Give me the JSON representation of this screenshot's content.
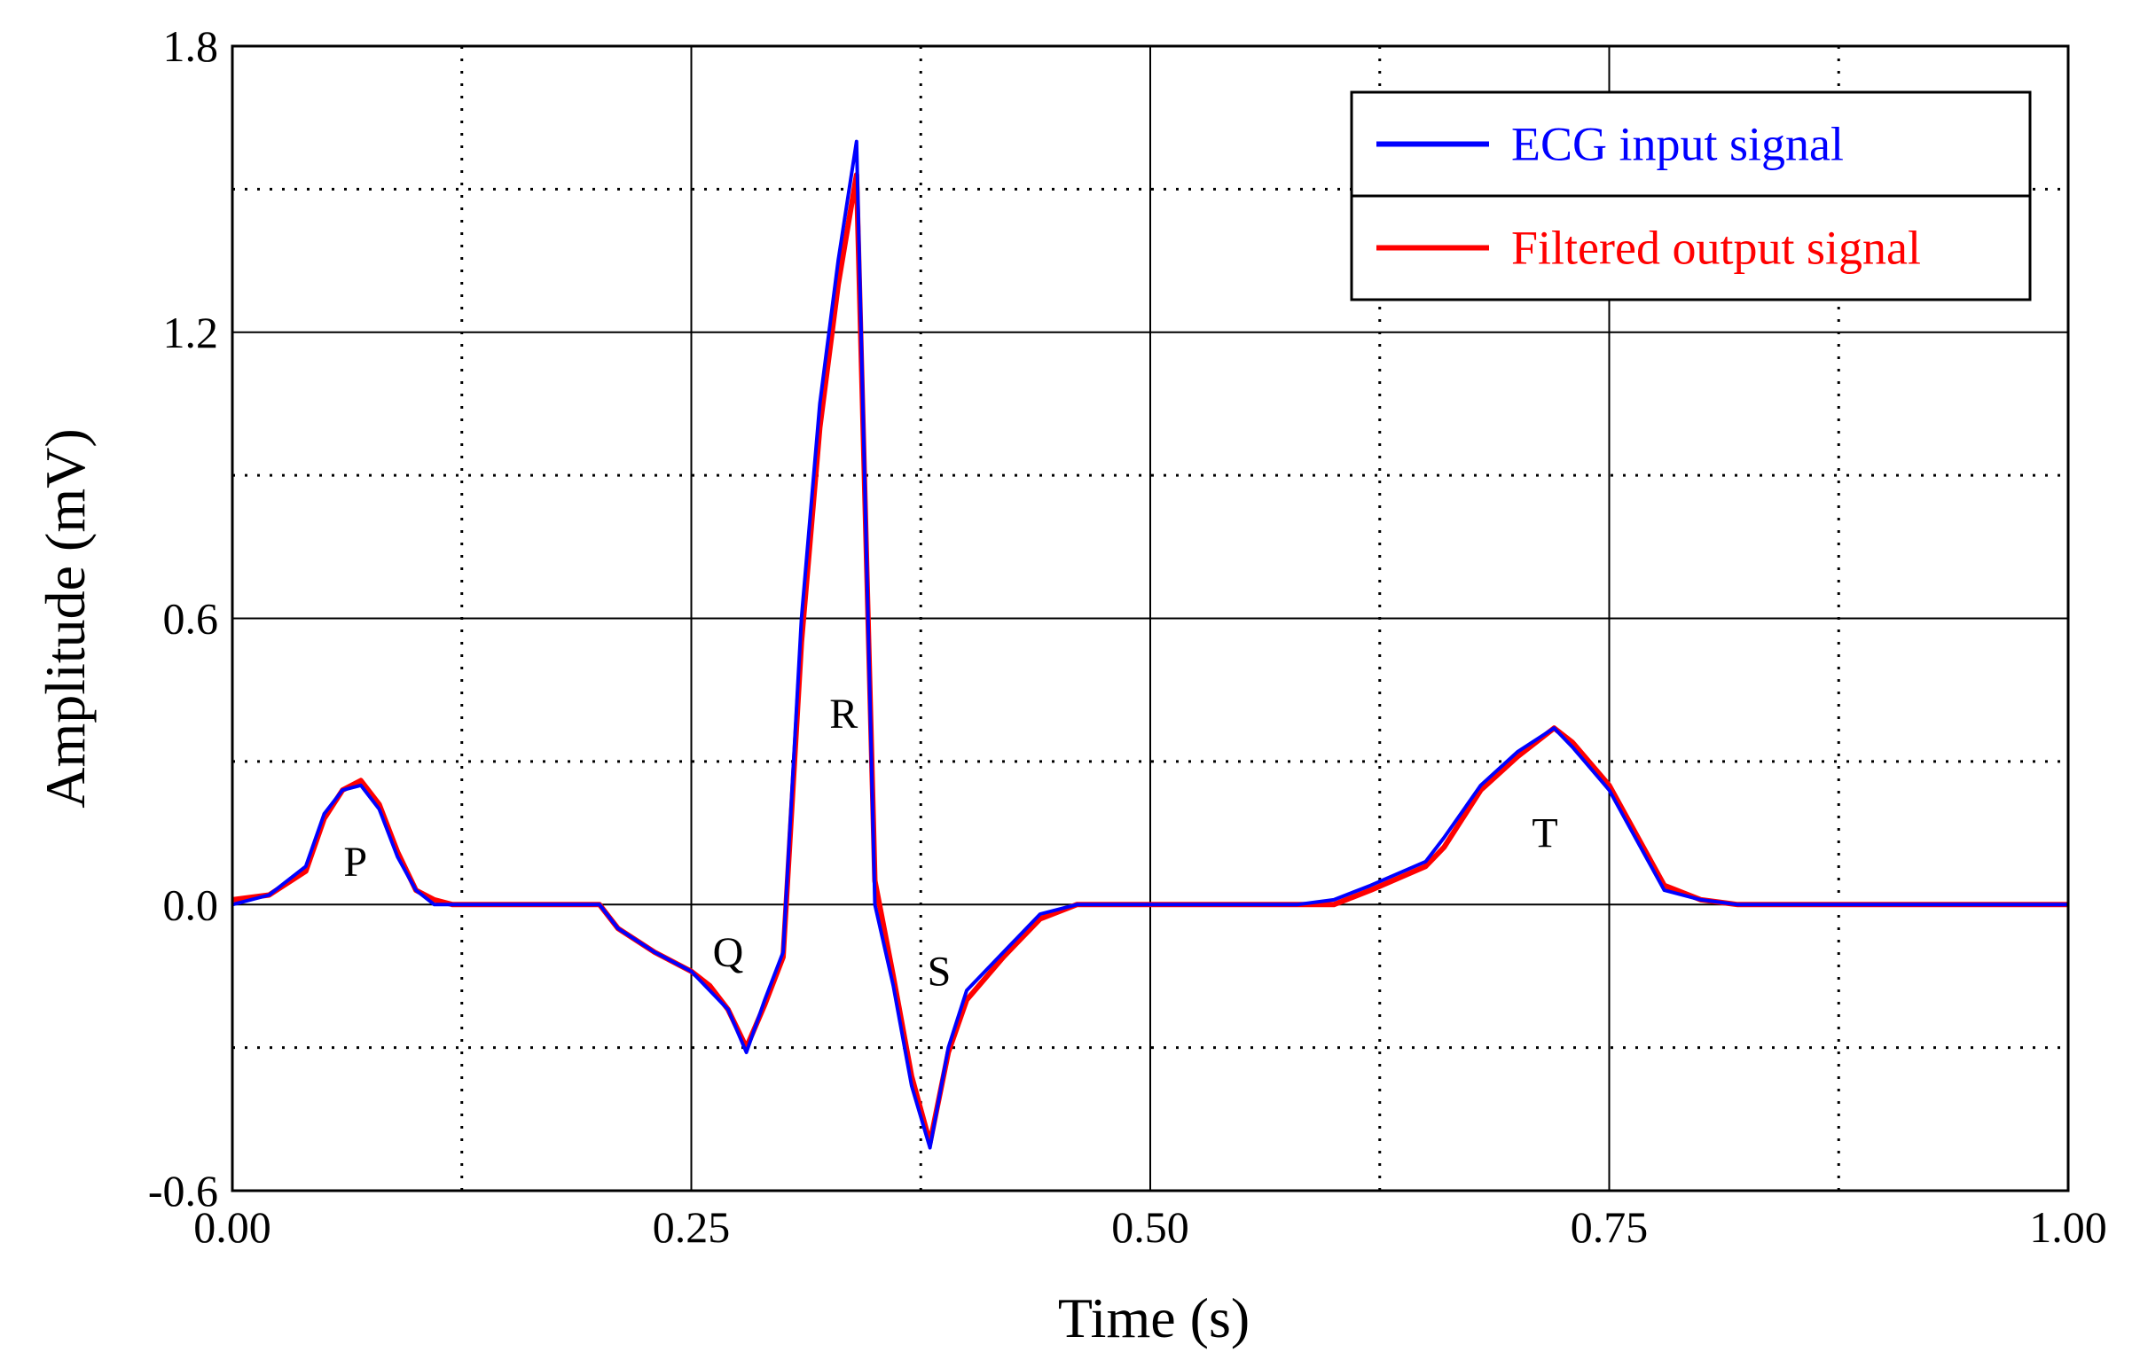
{
  "chart_data": {
    "type": "line",
    "title": "",
    "xlabel": "Time (s)",
    "ylabel": "Amplitude (mV)",
    "xlim": [
      0,
      1
    ],
    "ylim": [
      -0.6,
      1.8
    ],
    "x_ticks": [
      0,
      0.25,
      0.5,
      0.75,
      1.0
    ],
    "x_tick_labels": [
      "0.00",
      "0.25",
      "0.50",
      "0.75",
      "1.00"
    ],
    "y_ticks": [
      -0.6,
      0,
      0.6,
      1.2,
      1.8
    ],
    "y_tick_labels": [
      "-0.6",
      "0.0",
      "0.6",
      "1.2",
      "1.8"
    ],
    "x_minor_grid": [
      0.125,
      0.375,
      0.625,
      0.875
    ],
    "y_minor_grid": [
      -0.3,
      0.3,
      0.9,
      1.5
    ],
    "grid": true,
    "legend_position": "top-right",
    "annotations": [
      {
        "text": "P",
        "x": 0.067,
        "y": 0.09
      },
      {
        "text": "Q",
        "x": 0.27,
        "y": -0.1
      },
      {
        "text": "R",
        "x": 0.333,
        "y": 0.4
      },
      {
        "text": "S",
        "x": 0.385,
        "y": -0.14
      },
      {
        "text": "T",
        "x": 0.715,
        "y": 0.15
      }
    ],
    "series": [
      {
        "name": "ECG input signal",
        "color": "#0000ff",
        "x": [
          0,
          0.02,
          0.04,
          0.05,
          0.06,
          0.07,
          0.08,
          0.09,
          0.1,
          0.11,
          0.12,
          0.2,
          0.21,
          0.23,
          0.25,
          0.26,
          0.27,
          0.28,
          0.29,
          0.3,
          0.31,
          0.32,
          0.33,
          0.34,
          0.35,
          0.36,
          0.37,
          0.38,
          0.39,
          0.4,
          0.42,
          0.44,
          0.46,
          0.5,
          0.58,
          0.6,
          0.62,
          0.65,
          0.66,
          0.68,
          0.7,
          0.72,
          0.73,
          0.75,
          0.77,
          0.78,
          0.8,
          0.82,
          1.0
        ],
        "y": [
          0,
          0.02,
          0.08,
          0.19,
          0.24,
          0.25,
          0.2,
          0.1,
          0.03,
          0,
          0,
          0,
          -0.05,
          -0.1,
          -0.14,
          -0.18,
          -0.22,
          -0.31,
          -0.2,
          -0.1,
          0.6,
          1.05,
          1.35,
          1.6,
          0,
          -0.17,
          -0.38,
          -0.51,
          -0.3,
          -0.18,
          -0.1,
          -0.02,
          0,
          0,
          0,
          0.01,
          0.04,
          0.09,
          0.14,
          0.25,
          0.32,
          0.37,
          0.33,
          0.24,
          0.1,
          0.03,
          0.01,
          0,
          0
        ]
      },
      {
        "name": "Filtered output signal",
        "color": "#ff0000",
        "x": [
          0,
          0.02,
          0.04,
          0.05,
          0.06,
          0.07,
          0.08,
          0.09,
          0.1,
          0.11,
          0.12,
          0.2,
          0.21,
          0.23,
          0.25,
          0.26,
          0.27,
          0.28,
          0.29,
          0.3,
          0.31,
          0.32,
          0.33,
          0.34,
          0.35,
          0.36,
          0.37,
          0.38,
          0.39,
          0.4,
          0.42,
          0.44,
          0.46,
          0.5,
          0.58,
          0.6,
          0.62,
          0.65,
          0.66,
          0.68,
          0.7,
          0.72,
          0.73,
          0.75,
          0.77,
          0.78,
          0.8,
          0.82,
          1.0
        ],
        "y": [
          0.01,
          0.02,
          0.07,
          0.18,
          0.24,
          0.26,
          0.21,
          0.11,
          0.03,
          0.01,
          0,
          0,
          -0.05,
          -0.1,
          -0.14,
          -0.17,
          -0.22,
          -0.3,
          -0.21,
          -0.11,
          0.55,
          1.0,
          1.3,
          1.53,
          0.05,
          -0.15,
          -0.36,
          -0.5,
          -0.31,
          -0.2,
          -0.11,
          -0.03,
          0,
          0,
          0,
          0,
          0.03,
          0.08,
          0.12,
          0.24,
          0.31,
          0.37,
          0.34,
          0.25,
          0.11,
          0.04,
          0.01,
          0,
          0
        ]
      }
    ]
  }
}
